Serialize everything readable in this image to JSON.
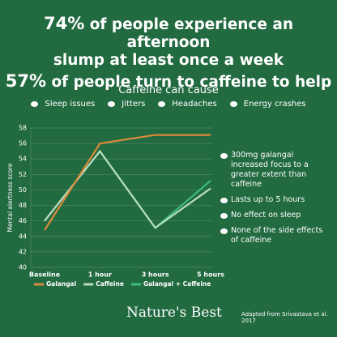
{
  "headline": {
    "lines": [
      {
        "stat": "74%",
        "text": "of people experience an afternoon"
      },
      {
        "stat": null,
        "text": "slump at least once a week"
      },
      {
        "stat": "57%",
        "text": "of people turn to caffeine to help"
      }
    ]
  },
  "causes": {
    "title": "Caffeine can cause",
    "items": [
      "Sleep issues",
      "Jitters",
      "Headaches",
      "Energy crashes"
    ]
  },
  "benefits": [
    "300mg galangal increased focus to a greater extent than caffeine",
    "Lasts up to 5 hours",
    "No effect on sleep",
    "None of the side effects of caffeine"
  ],
  "chart_data": {
    "type": "line",
    "y_label": "Mental alertness score",
    "categories": [
      "Baseline",
      "1 hour",
      "3 hours",
      "5 hours"
    ],
    "series": [
      {
        "name": "Galangal + Caffeine",
        "color": "#3dbb78",
        "values": [
          46,
          55,
          45.1,
          51.2
        ]
      },
      {
        "name": "Caffeine",
        "color": "#b9ddc2",
        "values": [
          46,
          55,
          45.1,
          50.2
        ]
      },
      {
        "name": "Galangal",
        "color": "#d98a3b",
        "values": [
          44.8,
          56,
          57.1,
          57.1
        ]
      }
    ],
    "legend_order": [
      "Galangal",
      "Caffeine",
      "Galangal + Caffeine"
    ],
    "ylim": [
      40,
      58
    ],
    "yticks": [
      40,
      42,
      44,
      46,
      48,
      50,
      52,
      54,
      56,
      58
    ],
    "grid": true
  },
  "footer": {
    "brand": "Nature's Best",
    "source": "Adapted from Srivastava et al. 2017"
  }
}
